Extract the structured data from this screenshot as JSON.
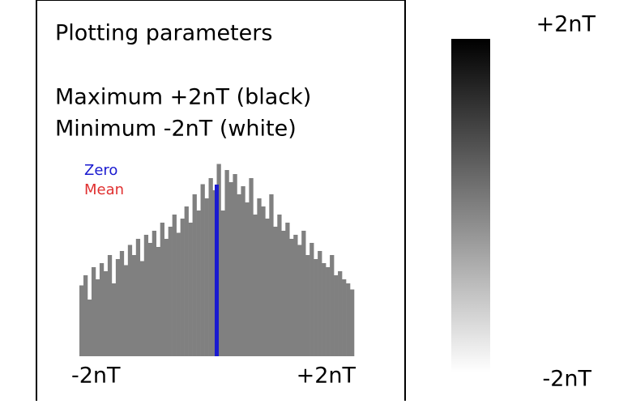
{
  "header": {
    "title": "Plotting parameters"
  },
  "parameters": [
    "Maximum +2nT (black)",
    "Minimum -2nT (white)"
  ],
  "histogram": {
    "legend": [
      {
        "name": "Zero",
        "color": "#1a1ad0",
        "value": 0
      },
      {
        "name": "Mean",
        "color": "#e03030",
        "value": 0
      }
    ],
    "color": "#808080",
    "xlim": [
      -2,
      2
    ],
    "xticks": [
      {
        "value": -2,
        "label": "-2nT"
      },
      {
        "value": 2,
        "label": "+2nT"
      }
    ],
    "ylim": [
      0,
      100
    ],
    "counts": [
      35,
      40,
      28,
      44,
      38,
      46,
      42,
      50,
      36,
      48,
      52,
      45,
      55,
      50,
      58,
      47,
      60,
      56,
      62,
      54,
      66,
      58,
      64,
      70,
      61,
      68,
      74,
      66,
      80,
      72,
      85,
      78,
      88,
      82,
      95,
      72,
      92,
      86,
      90,
      80,
      84,
      76,
      88,
      70,
      78,
      74,
      68,
      80,
      64,
      70,
      62,
      66,
      58,
      60,
      55,
      62,
      50,
      56,
      48,
      52,
      46,
      44,
      50,
      40,
      42,
      38,
      36,
      33
    ]
  },
  "colorbar": {
    "max_label": "+2nT",
    "min_label": "-2nT",
    "top_color": "#000000",
    "bottom_color": "#ffffff"
  }
}
